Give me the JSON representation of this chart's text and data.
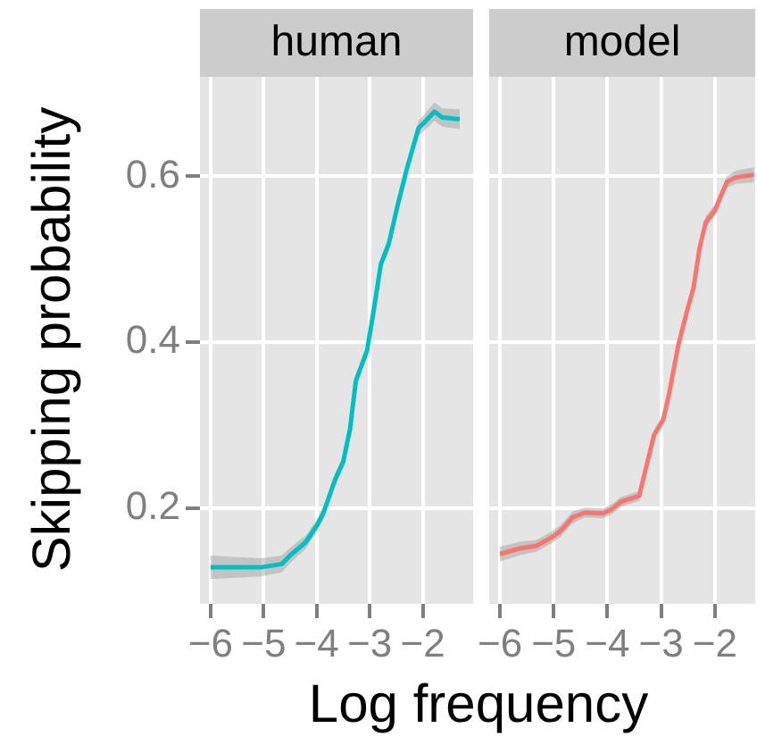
{
  "chart_data": [
    {
      "type": "line",
      "title": "human",
      "ylabel": "Skipping probability",
      "xlabel": "Log frequency",
      "grid": true,
      "legend": false,
      "xlim": [
        -6.2,
        -1.05
      ],
      "ylim": [
        0.085,
        0.72
      ],
      "xticks": [
        {
          "value": -6,
          "label": "−6"
        },
        {
          "value": -5,
          "label": "−5"
        },
        {
          "value": -4,
          "label": "−4"
        },
        {
          "value": -3,
          "label": "−3"
        },
        {
          "value": -2,
          "label": "−2"
        }
      ],
      "yticks": [
        0.2,
        0.4,
        0.6
      ],
      "series": [
        {
          "color": "#00bfc4",
          "x": [
            -6.0,
            -5.05,
            -4.66,
            -4.49,
            -4.21,
            -3.98,
            -3.87,
            -3.65,
            -3.5,
            -3.37,
            -3.26,
            -3.05,
            -2.92,
            -2.79,
            -2.64,
            -2.47,
            -2.3,
            -2.08,
            -1.94,
            -1.78,
            -1.63,
            -1.3
          ],
          "values": [
            0.129,
            0.129,
            0.133,
            0.144,
            0.159,
            0.181,
            0.195,
            0.235,
            0.256,
            0.296,
            0.354,
            0.39,
            0.44,
            0.494,
            0.519,
            0.566,
            0.609,
            0.658,
            0.667,
            0.678,
            0.671,
            0.669
          ],
          "lower": [
            0.115,
            0.118,
            0.123,
            0.135,
            0.151,
            0.174,
            0.188,
            0.228,
            0.249,
            0.289,
            0.347,
            0.383,
            0.433,
            0.487,
            0.512,
            0.559,
            0.601,
            0.649,
            0.657,
            0.667,
            0.66,
            0.657
          ],
          "upper": [
            0.143,
            0.14,
            0.143,
            0.153,
            0.167,
            0.188,
            0.202,
            0.242,
            0.263,
            0.303,
            0.361,
            0.397,
            0.447,
            0.501,
            0.526,
            0.573,
            0.617,
            0.667,
            0.677,
            0.689,
            0.682,
            0.681
          ]
        }
      ]
    },
    {
      "type": "line",
      "title": "model",
      "grid": true,
      "legend": false,
      "tick_labels": "x",
      "xlim": [
        -6.2,
        -1.25
      ],
      "ylim": [
        0.085,
        0.72
      ],
      "xticks": [
        {
          "value": -6,
          "label": "−6"
        },
        {
          "value": -5,
          "label": "−5"
        },
        {
          "value": -4,
          "label": "−4"
        },
        {
          "value": -3,
          "label": "−3"
        },
        {
          "value": -2,
          "label": "−2"
        }
      ],
      "yticks": [
        0.2,
        0.4,
        0.6
      ],
      "series": [
        {
          "color": "#f8766d",
          "x": [
            -6.0,
            -5.61,
            -5.32,
            -5.04,
            -4.87,
            -4.65,
            -4.42,
            -4.08,
            -3.92,
            -3.75,
            -3.41,
            -3.3,
            -3.13,
            -2.96,
            -2.85,
            -2.68,
            -2.51,
            -2.4,
            -2.29,
            -2.17,
            -2.0,
            -1.78,
            -1.61,
            -1.27
          ],
          "values": [
            0.145,
            0.152,
            0.155,
            0.165,
            0.173,
            0.189,
            0.195,
            0.194,
            0.199,
            0.208,
            0.215,
            0.244,
            0.289,
            0.307,
            0.339,
            0.397,
            0.44,
            0.465,
            0.512,
            0.545,
            0.559,
            0.593,
            0.599,
            0.602
          ],
          "lower": [
            0.136,
            0.144,
            0.148,
            0.158,
            0.166,
            0.182,
            0.189,
            0.188,
            0.193,
            0.202,
            0.209,
            0.238,
            0.283,
            0.301,
            0.333,
            0.391,
            0.434,
            0.459,
            0.506,
            0.538,
            0.552,
            0.586,
            0.591,
            0.593
          ],
          "upper": [
            0.154,
            0.16,
            0.162,
            0.172,
            0.18,
            0.196,
            0.201,
            0.2,
            0.205,
            0.214,
            0.221,
            0.25,
            0.295,
            0.313,
            0.345,
            0.403,
            0.446,
            0.471,
            0.518,
            0.552,
            0.566,
            0.6,
            0.607,
            0.611
          ]
        }
      ]
    }
  ]
}
